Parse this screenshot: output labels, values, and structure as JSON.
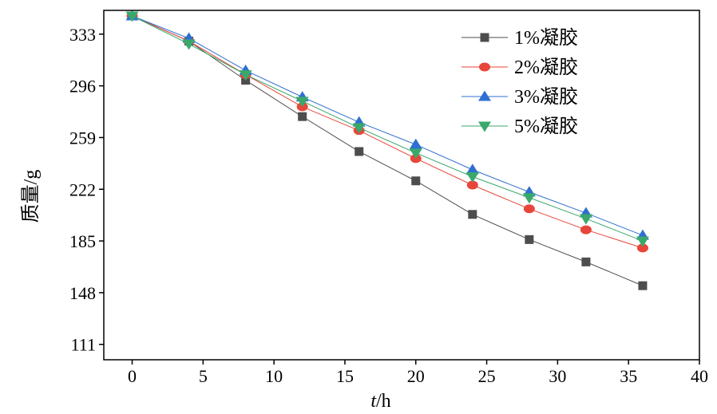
{
  "chart_data": {
    "type": "line",
    "xlabel_italic": "t",
    "xlabel_rest": "/h",
    "ylabel": "质量/g",
    "xlim": [
      -2,
      40
    ],
    "ylim": [
      100,
      350
    ],
    "xticks": [
      0,
      5,
      10,
      15,
      20,
      25,
      30,
      35,
      40
    ],
    "yticks": [
      111,
      148,
      185,
      222,
      259,
      296,
      333
    ],
    "legend_position": "top-right",
    "x": [
      0,
      4,
      8,
      12,
      16,
      20,
      24,
      28,
      32,
      36
    ],
    "series": [
      {
        "name": "1%凝胶",
        "marker": "square",
        "color": "#4d4d4d",
        "values": [
          346,
          328,
          300,
          274,
          249,
          228,
          204,
          186,
          170,
          153
        ]
      },
      {
        "name": "2%凝胶",
        "marker": "circle",
        "color": "#e8463a",
        "values": [
          346,
          328,
          304,
          281,
          264,
          244,
          225,
          208,
          193,
          180
        ]
      },
      {
        "name": "3%凝胶",
        "marker": "triangle-up",
        "color": "#2e6fd1",
        "values": [
          346,
          330,
          307,
          288,
          270,
          254,
          236,
          220,
          205,
          189
        ]
      },
      {
        "name": "5%凝胶",
        "marker": "triangle-down",
        "color": "#3aa86b",
        "values": [
          346,
          326,
          304,
          285,
          266,
          248,
          231,
          216,
          201,
          185
        ]
      }
    ]
  }
}
